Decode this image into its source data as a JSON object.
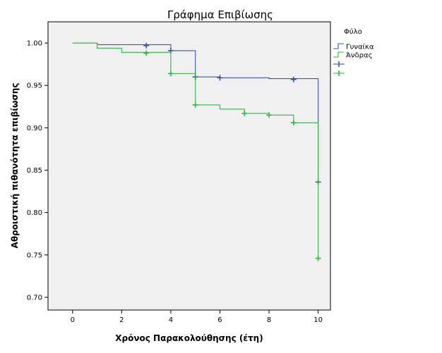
{
  "chart_data": {
    "type": "line",
    "title": "Γράφημα Επιβίωσης",
    "xlabel": "Χρόνος Παρακολούθησης (έτη)",
    "ylabel": "Αθροιστική πιθανότητα επιβίωσης",
    "xlim": [
      -1,
      10.5
    ],
    "ylim": [
      0.685,
      1.025
    ],
    "xticks": [
      0,
      2,
      4,
      6,
      8,
      10
    ],
    "yticks": [
      0.7,
      0.75,
      0.8,
      0.85,
      0.9,
      0.95,
      1.0
    ],
    "ytick_labels": [
      "0.70",
      "0.75",
      "0.80",
      "0.85",
      "0.90",
      "0.95",
      "1.00"
    ],
    "legend": {
      "title": "Φύλο",
      "position": "right-outside",
      "entries": [
        "Γυναίκα",
        "Άνδρας",
        "",
        ""
      ]
    },
    "series": [
      {
        "name": "Γυναίκα",
        "color": "#3d55a9",
        "steps": [
          [
            0,
            1.0
          ],
          [
            1,
            0.998
          ],
          [
            4,
            0.991
          ],
          [
            5,
            0.96
          ],
          [
            6,
            0.959
          ],
          [
            8,
            0.958
          ],
          [
            10,
            0.836
          ]
        ],
        "end_x": 10,
        "censored": [
          [
            3,
            0.997
          ],
          [
            4,
            0.991
          ],
          [
            5,
            0.96
          ],
          [
            6,
            0.959
          ],
          [
            9,
            0.957
          ],
          [
            10,
            0.836
          ]
        ]
      },
      {
        "name": "Άνδρας",
        "color": "#33b44a",
        "steps": [
          [
            0,
            1.0
          ],
          [
            1,
            0.994
          ],
          [
            2,
            0.989
          ],
          [
            4,
            0.964
          ],
          [
            5,
            0.927
          ],
          [
            6,
            0.922
          ],
          [
            7,
            0.917
          ],
          [
            8,
            0.915
          ],
          [
            9,
            0.906
          ],
          [
            10,
            0.746
          ]
        ],
        "end_x": 10,
        "censored": [
          [
            3,
            0.988
          ],
          [
            4,
            0.964
          ],
          [
            5,
            0.927
          ],
          [
            7,
            0.917
          ],
          [
            8,
            0.915
          ],
          [
            9,
            0.906
          ],
          [
            10,
            0.746
          ]
        ]
      }
    ]
  }
}
